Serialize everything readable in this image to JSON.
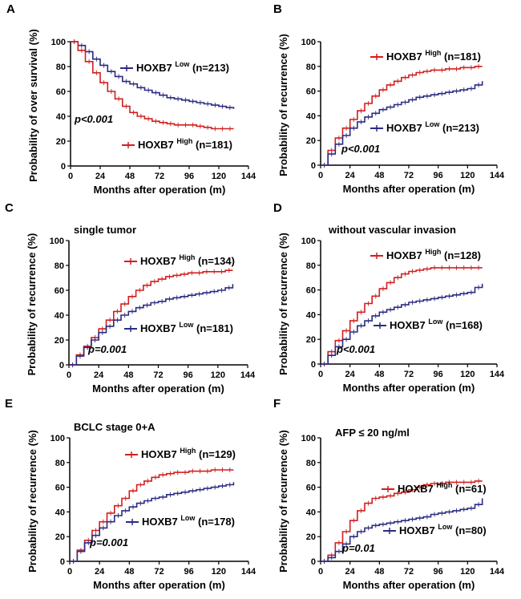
{
  "chart_data": [
    {
      "type": "line",
      "panel": "A",
      "title": "",
      "xlabel": "Months after operation (m)",
      "ylabel": "Probability of over survival (%)",
      "xlim": [
        0,
        144
      ],
      "ylim": [
        0,
        100
      ],
      "xticks": [
        "0",
        "24",
        "48",
        "72",
        "96",
        "120",
        "144"
      ],
      "yticks": [
        "0",
        "20",
        "40",
        "60",
        "80",
        "100"
      ],
      "pvalue": "p<0.001",
      "series": [
        {
          "name": "HOXB7",
          "sup": "Low",
          "n": "(n=213)",
          "color": "#2b2b80",
          "x": [
            0,
            6,
            12,
            18,
            24,
            30,
            36,
            42,
            48,
            54,
            60,
            66,
            72,
            78,
            84,
            90,
            96,
            102,
            108,
            114,
            120,
            126,
            132
          ],
          "y": [
            100,
            97,
            92,
            86,
            81,
            76,
            72,
            68,
            66,
            63,
            61,
            59,
            57,
            55,
            54,
            53,
            52,
            51,
            50,
            49,
            48,
            47,
            46
          ]
        },
        {
          "name": "HOXB7",
          "sup": "High",
          "n": "(n=181)",
          "color": "#d11f1f",
          "x": [
            0,
            6,
            12,
            18,
            24,
            30,
            36,
            42,
            48,
            54,
            60,
            66,
            72,
            78,
            84,
            90,
            96,
            102,
            108,
            114,
            120,
            126,
            132
          ],
          "y": [
            100,
            93,
            84,
            75,
            67,
            60,
            54,
            48,
            43,
            40,
            38,
            36,
            35,
            34,
            33,
            33,
            33,
            32,
            31,
            30,
            30,
            30,
            30
          ]
        }
      ]
    },
    {
      "type": "line",
      "panel": "B",
      "title": "",
      "xlabel": "Months after operation (m)",
      "ylabel": "Probability of recurrence (%)",
      "xlim": [
        0,
        144
      ],
      "ylim": [
        0,
        100
      ],
      "xticks": [
        "0",
        "24",
        "48",
        "72",
        "96",
        "120",
        "144"
      ],
      "yticks": [
        "0",
        "20",
        "40",
        "60",
        "80",
        "100"
      ],
      "pvalue": "p<0.001",
      "series": [
        {
          "name": "HOXB7",
          "sup": "High",
          "n": "(n=181)",
          "color": "#d11f1f",
          "x": [
            0,
            6,
            12,
            18,
            24,
            30,
            36,
            42,
            48,
            54,
            60,
            66,
            72,
            78,
            84,
            90,
            96,
            102,
            108,
            114,
            120,
            126,
            132
          ],
          "y": [
            0,
            12,
            22,
            30,
            37,
            44,
            50,
            56,
            61,
            65,
            68,
            71,
            73,
            75,
            76,
            77,
            77,
            78,
            78,
            79,
            79,
            80,
            80
          ]
        },
        {
          "name": "HOXB7",
          "sup": "Low",
          "n": "(n=213)",
          "color": "#2b2b80",
          "x": [
            0,
            6,
            12,
            18,
            24,
            30,
            36,
            42,
            48,
            54,
            60,
            66,
            72,
            78,
            84,
            90,
            96,
            102,
            108,
            114,
            120,
            126,
            132
          ],
          "y": [
            0,
            9,
            17,
            24,
            30,
            35,
            39,
            42,
            45,
            47,
            49,
            51,
            53,
            55,
            56,
            57,
            58,
            59,
            60,
            61,
            62,
            65,
            68
          ]
        }
      ]
    },
    {
      "type": "line",
      "panel": "C",
      "title": "single tumor",
      "xlabel": "Months after operation (m)",
      "ylabel": "Probability of recurrence (%)",
      "xlim": [
        0,
        144
      ],
      "ylim": [
        0,
        100
      ],
      "xticks": [
        "0",
        "24",
        "48",
        "72",
        "96",
        "120",
        "144"
      ],
      "yticks": [
        "0",
        "20",
        "40",
        "60",
        "80",
        "100"
      ],
      "pvalue": "p=0.001",
      "series": [
        {
          "name": "HOXB7",
          "sup": "High",
          "n": "(n=134)",
          "color": "#d11f1f",
          "x": [
            0,
            6,
            12,
            18,
            24,
            30,
            36,
            42,
            48,
            54,
            60,
            66,
            72,
            78,
            84,
            90,
            96,
            102,
            108,
            114,
            120,
            126,
            132
          ],
          "y": [
            0,
            8,
            15,
            22,
            29,
            36,
            43,
            49,
            55,
            60,
            64,
            67,
            69,
            71,
            72,
            73,
            74,
            74,
            75,
            75,
            75,
            76,
            76
          ]
        },
        {
          "name": "HOXB7",
          "sup": "Low",
          "n": "(n=181)",
          "color": "#2b2b80",
          "x": [
            0,
            6,
            12,
            18,
            24,
            30,
            36,
            42,
            48,
            54,
            60,
            66,
            72,
            78,
            84,
            90,
            96,
            102,
            108,
            114,
            120,
            126,
            132
          ],
          "y": [
            0,
            7,
            14,
            20,
            26,
            31,
            36,
            40,
            43,
            46,
            48,
            50,
            51,
            53,
            54,
            55,
            56,
            57,
            58,
            59,
            60,
            62,
            65
          ]
        }
      ]
    },
    {
      "type": "line",
      "panel": "D",
      "title": "without vascular invasion",
      "xlabel": "Months after operation (m)",
      "ylabel": "Probability of recurrence (%)",
      "xlim": [
        0,
        144
      ],
      "ylim": [
        0,
        100
      ],
      "xticks": [
        "0",
        "24",
        "48",
        "72",
        "96",
        "120",
        "144"
      ],
      "yticks": [
        "0",
        "20",
        "40",
        "60",
        "80",
        "100"
      ],
      "pvalue": "p<0.001",
      "series": [
        {
          "name": "HOXB7",
          "sup": "High",
          "n": "(n=128)",
          "color": "#d11f1f",
          "x": [
            0,
            6,
            12,
            18,
            24,
            30,
            36,
            42,
            48,
            54,
            60,
            66,
            72,
            78,
            84,
            90,
            96,
            102,
            108,
            114,
            120,
            126,
            132
          ],
          "y": [
            0,
            10,
            19,
            27,
            35,
            42,
            49,
            55,
            61,
            66,
            70,
            73,
            75,
            76,
            77,
            78,
            78,
            78,
            78,
            78,
            78,
            78,
            78
          ]
        },
        {
          "name": "HOXB7",
          "sup": "Low",
          "n": "(n=168)",
          "color": "#2b2b80",
          "x": [
            0,
            6,
            12,
            18,
            24,
            30,
            36,
            42,
            48,
            54,
            60,
            66,
            72,
            78,
            84,
            90,
            96,
            102,
            108,
            114,
            120,
            126,
            132
          ],
          "y": [
            0,
            7,
            14,
            20,
            26,
            31,
            35,
            39,
            42,
            44,
            46,
            48,
            50,
            51,
            52,
            53,
            54,
            55,
            56,
            57,
            58,
            62,
            65
          ]
        }
      ]
    },
    {
      "type": "line",
      "panel": "E",
      "title": "BCLC stage 0+A",
      "xlabel": "Months after operation (m)",
      "ylabel": "Probability of recurrence (%)",
      "xlim": [
        0,
        144
      ],
      "ylim": [
        0,
        100
      ],
      "xticks": [
        "0",
        "24",
        "48",
        "72",
        "96",
        "120",
        "144"
      ],
      "yticks": [
        "0",
        "20",
        "40",
        "60",
        "80",
        "100"
      ],
      "pvalue": "p=0.001",
      "series": [
        {
          "name": "HOXB7",
          "sup": "High",
          "n": "(n=129)",
          "color": "#d11f1f",
          "x": [
            0,
            6,
            12,
            18,
            24,
            30,
            36,
            42,
            48,
            54,
            60,
            66,
            72,
            78,
            84,
            90,
            96,
            102,
            108,
            114,
            120,
            126,
            132
          ],
          "y": [
            0,
            9,
            17,
            25,
            32,
            39,
            45,
            51,
            57,
            62,
            65,
            68,
            70,
            71,
            72,
            72,
            73,
            73,
            73,
            74,
            74,
            74,
            74
          ]
        },
        {
          "name": "HOXB7",
          "sup": "Low",
          "n": "(n=178)",
          "color": "#2b2b80",
          "x": [
            0,
            6,
            12,
            18,
            24,
            30,
            36,
            42,
            48,
            54,
            60,
            66,
            72,
            78,
            84,
            90,
            96,
            102,
            108,
            114,
            120,
            126,
            132
          ],
          "y": [
            0,
            8,
            15,
            21,
            27,
            32,
            37,
            41,
            44,
            47,
            49,
            51,
            52,
            54,
            55,
            56,
            57,
            58,
            59,
            60,
            61,
            62,
            64
          ]
        }
      ]
    },
    {
      "type": "line",
      "panel": "F",
      "title": "AFP ≤ 20 ng/ml",
      "xlabel": "Months after operation (m)",
      "ylabel": "Probability of recurrence (%)",
      "xlim": [
        0,
        144
      ],
      "ylim": [
        0,
        100
      ],
      "xticks": [
        "0",
        "24",
        "48",
        "72",
        "96",
        "120",
        "144"
      ],
      "yticks": [
        "0",
        "20",
        "40",
        "60",
        "80",
        "100"
      ],
      "pvalue": "p=0.01",
      "series": [
        {
          "name": "HOXB7",
          "sup": "High",
          "n": "(n=61)",
          "color": "#d11f1f",
          "x": [
            0,
            6,
            12,
            18,
            24,
            30,
            36,
            42,
            48,
            54,
            60,
            66,
            72,
            78,
            84,
            90,
            96,
            102,
            108,
            114,
            120,
            126,
            132
          ],
          "y": [
            0,
            5,
            15,
            24,
            33,
            41,
            47,
            51,
            52,
            53,
            55,
            56,
            58,
            60,
            62,
            63,
            63,
            64,
            64,
            64,
            64,
            65,
            65
          ]
        },
        {
          "name": "HOXB7",
          "sup": "Low",
          "n": "(n=80)",
          "color": "#2b2b80",
          "x": [
            0,
            6,
            12,
            18,
            24,
            30,
            36,
            42,
            48,
            54,
            60,
            66,
            72,
            78,
            84,
            90,
            96,
            102,
            108,
            114,
            120,
            126,
            132
          ],
          "y": [
            0,
            3,
            8,
            14,
            20,
            24,
            27,
            29,
            30,
            31,
            32,
            33,
            34,
            35,
            36,
            38,
            39,
            40,
            41,
            42,
            43,
            46,
            51
          ]
        }
      ]
    }
  ]
}
